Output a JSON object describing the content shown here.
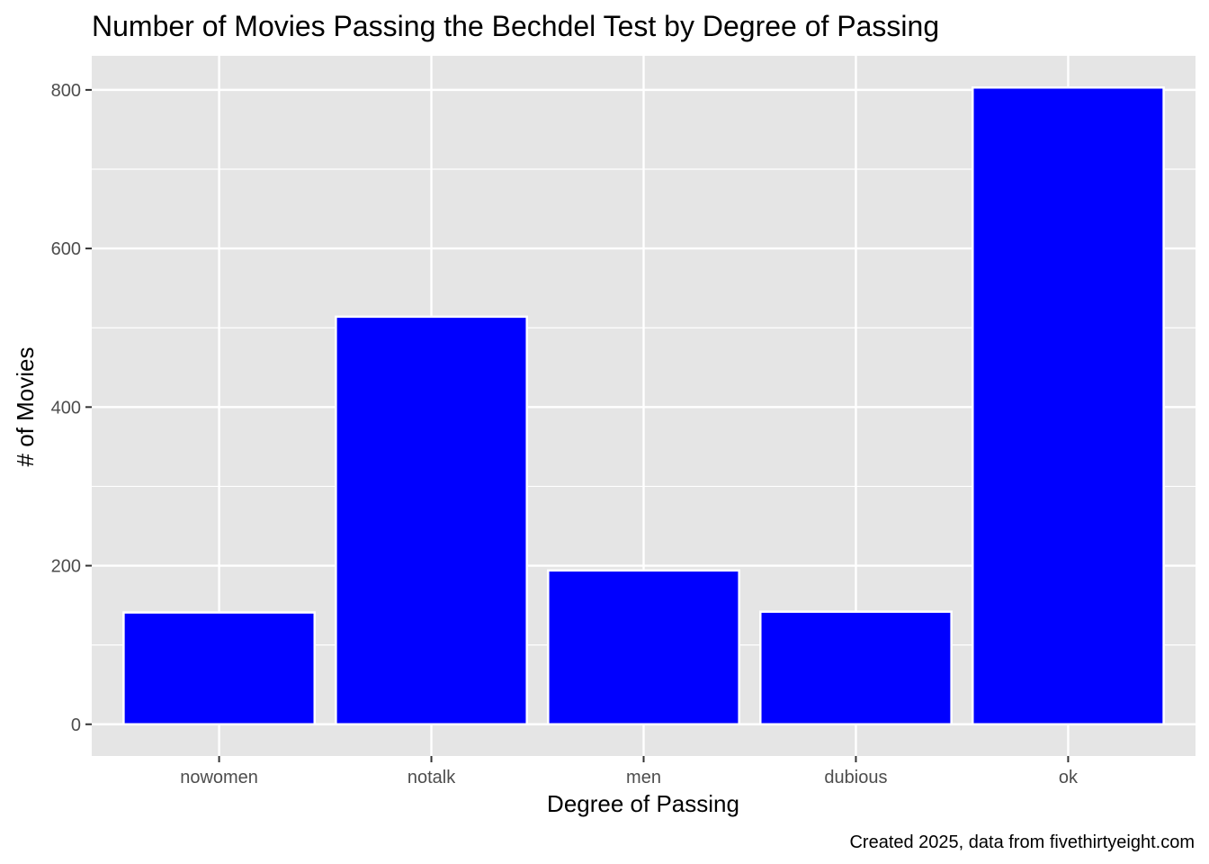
{
  "chart_data": {
    "type": "bar",
    "title": "Number of Movies Passing the Bechdel Test by Degree of Passing",
    "xlabel": "Degree of Passing",
    "ylabel": "# of Movies",
    "caption": "Created 2025, data from fivethirtyeight.com",
    "categories": [
      "nowomen",
      "notalk",
      "men",
      "dubious",
      "ok"
    ],
    "values": [
      141,
      514,
      194,
      142,
      803
    ],
    "ylim": [
      -40,
      843
    ],
    "yticks": [
      0,
      200,
      400,
      600,
      800
    ],
    "ytick_labels": [
      "0",
      "200",
      "400",
      "600",
      "800"
    ],
    "grid": true,
    "legend": "none",
    "colors": {
      "bar_fill": "#0000ff",
      "bar_outline": "#ffffff",
      "panel_background": "#e5e5e5",
      "grid": "#ffffff",
      "tick_text": "#4d4d4d",
      "tick_mark": "#333333"
    }
  }
}
